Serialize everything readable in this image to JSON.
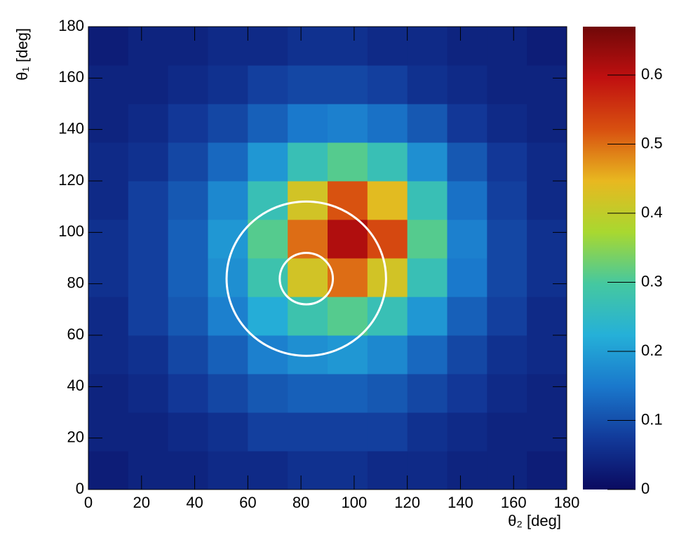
{
  "chart_data": {
    "type": "heatmap",
    "xlabel": "θ₂ [deg]",
    "ylabel": "θ₁ [deg]",
    "xbins": [
      0,
      15,
      30,
      45,
      60,
      75,
      90,
      105,
      120,
      135,
      150,
      165,
      180
    ],
    "ybins": [
      0,
      15,
      30,
      45,
      60,
      75,
      90,
      105,
      120,
      135,
      150,
      165,
      180
    ],
    "z": [
      [
        0.03,
        0.04,
        0.04,
        0.05,
        0.05,
        0.06,
        0.06,
        0.05,
        0.05,
        0.04,
        0.04,
        0.03
      ],
      [
        0.04,
        0.04,
        0.05,
        0.06,
        0.08,
        0.08,
        0.08,
        0.08,
        0.06,
        0.05,
        0.04,
        0.04
      ],
      [
        0.04,
        0.05,
        0.07,
        0.09,
        0.11,
        0.12,
        0.12,
        0.11,
        0.09,
        0.07,
        0.05,
        0.04
      ],
      [
        0.05,
        0.06,
        0.09,
        0.12,
        0.16,
        0.18,
        0.19,
        0.17,
        0.13,
        0.09,
        0.06,
        0.05
      ],
      [
        0.05,
        0.08,
        0.11,
        0.16,
        0.22,
        0.28,
        0.31,
        0.27,
        0.19,
        0.12,
        0.08,
        0.05
      ],
      [
        0.06,
        0.08,
        0.12,
        0.18,
        0.28,
        0.42,
        0.5,
        0.42,
        0.27,
        0.15,
        0.09,
        0.06
      ],
      [
        0.06,
        0.08,
        0.12,
        0.19,
        0.31,
        0.5,
        0.61,
        0.53,
        0.31,
        0.16,
        0.09,
        0.06
      ],
      [
        0.05,
        0.08,
        0.11,
        0.17,
        0.27,
        0.42,
        0.52,
        0.44,
        0.27,
        0.14,
        0.08,
        0.05
      ],
      [
        0.05,
        0.06,
        0.09,
        0.13,
        0.19,
        0.27,
        0.31,
        0.27,
        0.18,
        0.11,
        0.07,
        0.05
      ],
      [
        0.04,
        0.05,
        0.07,
        0.09,
        0.12,
        0.15,
        0.16,
        0.14,
        0.11,
        0.07,
        0.05,
        0.04
      ],
      [
        0.04,
        0.04,
        0.05,
        0.06,
        0.08,
        0.09,
        0.09,
        0.08,
        0.06,
        0.05,
        0.04,
        0.04
      ],
      [
        0.03,
        0.04,
        0.04,
        0.05,
        0.05,
        0.06,
        0.06,
        0.05,
        0.05,
        0.04,
        0.04,
        0.03
      ]
    ],
    "xlim": [
      0,
      180
    ],
    "ylim": [
      0,
      180
    ],
    "xticks": [
      0,
      20,
      40,
      60,
      80,
      100,
      120,
      140,
      160,
      180
    ],
    "yticks": [
      0,
      20,
      40,
      60,
      80,
      100,
      120,
      140,
      160,
      180
    ],
    "zlim": [
      0,
      0.67
    ],
    "zticks": [
      0,
      0.1,
      0.2,
      0.3,
      0.4,
      0.5,
      0.6
    ],
    "colormap": [
      "#0a0a60",
      "#123a9a",
      "#1a78cc",
      "#25b0d8",
      "#45c8a0",
      "#a8d830",
      "#e8b820",
      "#d85010",
      "#c01010",
      "#700808"
    ],
    "circles": [
      {
        "cx": 82,
        "cy": 82,
        "r": 10,
        "color": "#ffffff"
      },
      {
        "cx": 82,
        "cy": 82,
        "r": 30,
        "color": "#ffffff"
      }
    ]
  }
}
